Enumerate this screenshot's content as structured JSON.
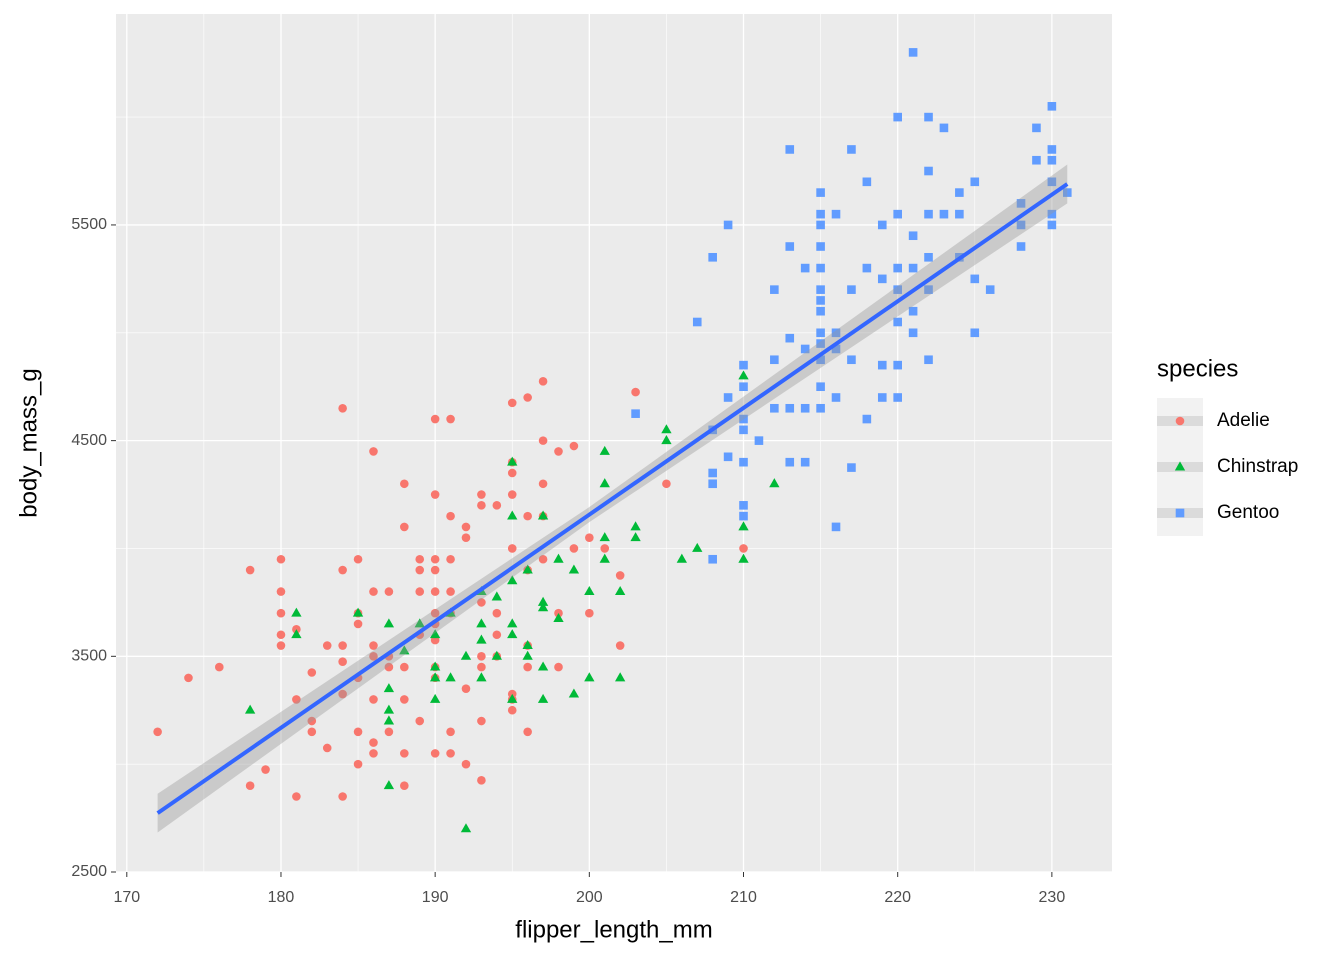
{
  "chart_data": {
    "type": "scatter",
    "x_label": "flipper_length_mm",
    "y_label": "body_mass_g",
    "xlim": [
      169.3,
      233.9
    ],
    "ylim": [
      2500,
      6478
    ],
    "xticks": [
      170,
      180,
      190,
      200,
      210,
      220,
      230
    ],
    "yticks": [
      2500,
      3500,
      4500,
      5500
    ],
    "xminor": [
      175,
      185,
      195,
      205,
      215,
      225
    ],
    "yminor": [
      3000,
      4000,
      5000,
      6000
    ],
    "grid": true,
    "legend_title": "species",
    "legend_position": "right",
    "series": [
      {
        "name": "Adelie",
        "color": "#F8766D",
        "shape": "circle",
        "x": [
          172,
          174,
          176,
          178,
          178,
          179,
          180,
          180,
          180,
          180,
          180,
          181,
          181,
          181,
          182,
          182,
          182,
          183,
          183,
          184,
          184,
          184,
          184,
          184,
          184,
          185,
          185,
          185,
          185,
          185,
          185,
          186,
          186,
          186,
          186,
          186,
          186,
          186,
          187,
          187,
          187,
          187,
          188,
          188,
          188,
          188,
          188,
          188,
          189,
          189,
          189,
          189,
          189,
          190,
          190,
          190,
          190,
          190,
          190,
          190,
          190,
          190,
          190,
          190,
          191,
          191,
          191,
          191,
          191,
          191,
          191,
          192,
          192,
          192,
          192,
          193,
          193,
          193,
          193,
          193,
          193,
          193,
          194,
          194,
          194,
          194,
          195,
          195,
          195,
          195,
          195,
          195,
          195,
          195,
          196,
          196,
          196,
          196,
          196,
          196,
          197,
          197,
          197,
          197,
          197,
          198,
          198,
          198,
          199,
          199,
          200,
          200,
          201,
          202,
          202,
          203,
          205,
          210
        ],
        "values": [
          3150,
          3400,
          3450,
          3900,
          2900,
          2975,
          3950,
          3800,
          3700,
          3600,
          3550,
          3300,
          2850,
          3625,
          3425,
          3200,
          3150,
          3550,
          3075,
          4650,
          3900,
          3550,
          3475,
          3325,
          2850,
          3950,
          3650,
          3700,
          3150,
          3000,
          3400,
          4450,
          3800,
          3550,
          3500,
          3100,
          3050,
          3300,
          3800,
          3450,
          3150,
          3500,
          4300,
          2900,
          3050,
          3450,
          3300,
          4100,
          3950,
          3800,
          3600,
          3200,
          3900,
          4600,
          4250,
          3950,
          3900,
          3800,
          3700,
          3650,
          3575,
          3450,
          3050,
          3400,
          4600,
          4150,
          3950,
          3800,
          3700,
          3150,
          3050,
          4100,
          4050,
          3000,
          3350,
          4250,
          4200,
          3750,
          3500,
          3450,
          3200,
          2925,
          4200,
          3700,
          3600,
          3500,
          4675,
          4400,
          4350,
          4250,
          4000,
          3325,
          3300,
          3250,
          4700,
          4150,
          3900,
          3550,
          3450,
          3150,
          4775,
          4500,
          4300,
          4150,
          3950,
          4450,
          3700,
          3450,
          4475,
          4000,
          4050,
          3700,
          4000,
          3875,
          3550,
          4725,
          4300,
          4000
        ]
      },
      {
        "name": "Chinstrap",
        "color": "#00BA38",
        "shape": "triangle",
        "x": [
          178,
          181,
          181,
          185,
          187,
          187,
          187,
          187,
          187,
          188,
          189,
          190,
          190,
          190,
          190,
          191,
          191,
          192,
          192,
          193,
          193,
          193,
          193,
          194,
          194,
          195,
          195,
          195,
          195,
          195,
          195,
          196,
          196,
          196,
          197,
          197,
          197,
          197,
          197,
          198,
          198,
          199,
          199,
          200,
          200,
          201,
          201,
          201,
          201,
          202,
          202,
          203,
          203,
          205,
          205,
          206,
          207,
          210,
          210,
          210,
          212
        ],
        "values": [
          3250,
          3700,
          3600,
          3700,
          3650,
          3350,
          3250,
          3200,
          2900,
          3525,
          3650,
          3600,
          3450,
          3400,
          3300,
          3700,
          3400,
          3500,
          2700,
          3800,
          3650,
          3575,
          3400,
          3775,
          3500,
          4400,
          4150,
          3850,
          3650,
          3600,
          3300,
          3900,
          3550,
          3500,
          4150,
          3750,
          3725,
          3450,
          3300,
          3950,
          3675,
          3900,
          3325,
          3800,
          3400,
          4450,
          4300,
          4050,
          3950,
          3800,
          3400,
          4100,
          4050,
          4550,
          4500,
          3950,
          4000,
          4800,
          4100,
          3950,
          4300
        ]
      },
      {
        "name": "Gentoo",
        "color": "#619CFF",
        "shape": "square",
        "x": [
          203,
          207,
          208,
          208,
          208,
          208,
          208,
          209,
          209,
          209,
          210,
          210,
          210,
          210,
          210,
          210,
          210,
          211,
          212,
          212,
          212,
          213,
          213,
          213,
          213,
          213,
          214,
          214,
          214,
          214,
          215,
          215,
          215,
          215,
          215,
          215,
          215,
          215,
          215,
          215,
          215,
          215,
          215,
          216,
          216,
          216,
          216,
          216,
          217,
          217,
          217,
          217,
          218,
          218,
          218,
          219,
          219,
          219,
          219,
          220,
          220,
          220,
          220,
          220,
          220,
          220,
          221,
          221,
          221,
          221,
          221,
          222,
          222,
          222,
          222,
          222,
          222,
          223,
          223,
          224,
          224,
          224,
          225,
          225,
          225,
          226,
          228,
          228,
          228,
          229,
          229,
          230,
          230,
          230,
          230,
          230,
          230,
          231
        ],
        "values": [
          4625,
          5050,
          5350,
          4550,
          4350,
          4300,
          3950,
          5500,
          4700,
          4425,
          4850,
          4750,
          4600,
          4400,
          4150,
          4200,
          4550,
          4500,
          5200,
          4875,
          4650,
          5850,
          5400,
          4975,
          4650,
          4400,
          5300,
          4925,
          4650,
          4400,
          5650,
          5550,
          5400,
          5300,
          5200,
          5150,
          5100,
          5000,
          4950,
          4875,
          4750,
          4650,
          5500,
          5550,
          5000,
          4925,
          4700,
          4100,
          5850,
          5200,
          4875,
          4375,
          5700,
          5300,
          4600,
          5500,
          5250,
          4850,
          4700,
          6000,
          5550,
          5300,
          5200,
          5050,
          4850,
          4700,
          6300,
          5450,
          5300,
          5100,
          5000,
          6000,
          5750,
          5550,
          5350,
          5200,
          4875,
          5950,
          5550,
          5550,
          5350,
          5650,
          5700,
          5250,
          5000,
          5200,
          5600,
          5500,
          5400,
          5950,
          5800,
          6050,
          5850,
          5800,
          5700,
          5550,
          5500,
          5650
        ]
      }
    ],
    "trend": {
      "color": "#3366FF",
      "band_color": "#999999",
      "x": [
        172,
        200,
        231
      ],
      "values": [
        2773,
        4157,
        5690
      ],
      "lower": [
        2683,
        4122,
        5600
      ],
      "upper": [
        2863,
        4192,
        5780
      ]
    }
  }
}
